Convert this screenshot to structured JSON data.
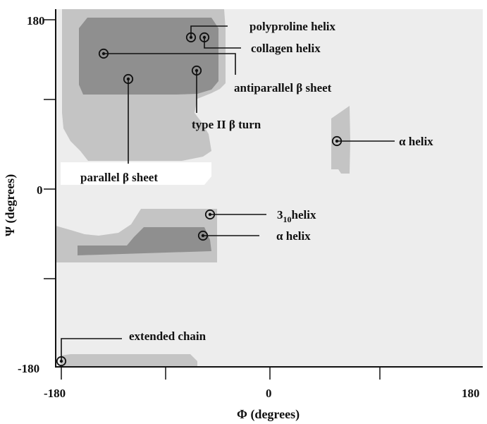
{
  "chart_data": {
    "type": "scatter",
    "xlabel_symbol": "Φ",
    "xlabel_rest": " (degrees)",
    "ylabel_symbol": "Ψ",
    "ylabel_rest": " (degrees)",
    "xlim": [
      -180,
      180
    ],
    "ylim": [
      -180,
      180
    ],
    "x_ticks": [
      -180,
      -90,
      0,
      90,
      180
    ],
    "y_ticks": [
      -180,
      -90,
      0,
      90,
      180
    ],
    "x_tick_labels": [
      "-180",
      "0",
      "180"
    ],
    "y_tick_labels": [
      "180",
      "0",
      "-180"
    ],
    "regions": {
      "background": "#ededed",
      "allowed": "#c4c4c4",
      "favored": "#8f8f8f",
      "forbidden": "#ffffff"
    },
    "points": [
      {
        "id": "polyproline-helix",
        "label": "polyproline helix",
        "x": -64,
        "y": 152
      },
      {
        "id": "collagen-helix",
        "label": "collagen helix",
        "x": -53,
        "y": 151
      },
      {
        "id": "antiparallel-beta-sheet",
        "label": "antiparallel β sheet",
        "x": -139,
        "y": 135
      },
      {
        "id": "type-ii-beta-turn",
        "label": "type II β turn",
        "x": -60,
        "y": 120
      },
      {
        "id": "parallel-beta-sheet",
        "label": "parallel β sheet",
        "x": -119,
        "y": 113
      },
      {
        "id": "alpha-helix-left",
        "label": "α helix",
        "x": 57,
        "y": 47
      },
      {
        "id": "three-ten-helix",
        "label": "3",
        "label_sub": "10",
        "label_tail": "helix",
        "x": -49,
        "y": -26
      },
      {
        "id": "alpha-helix-right",
        "label": "α helix",
        "x": -57,
        "y": -47
      },
      {
        "id": "extended-chain",
        "label": "extended chain",
        "x": -177,
        "y": -175
      }
    ]
  }
}
